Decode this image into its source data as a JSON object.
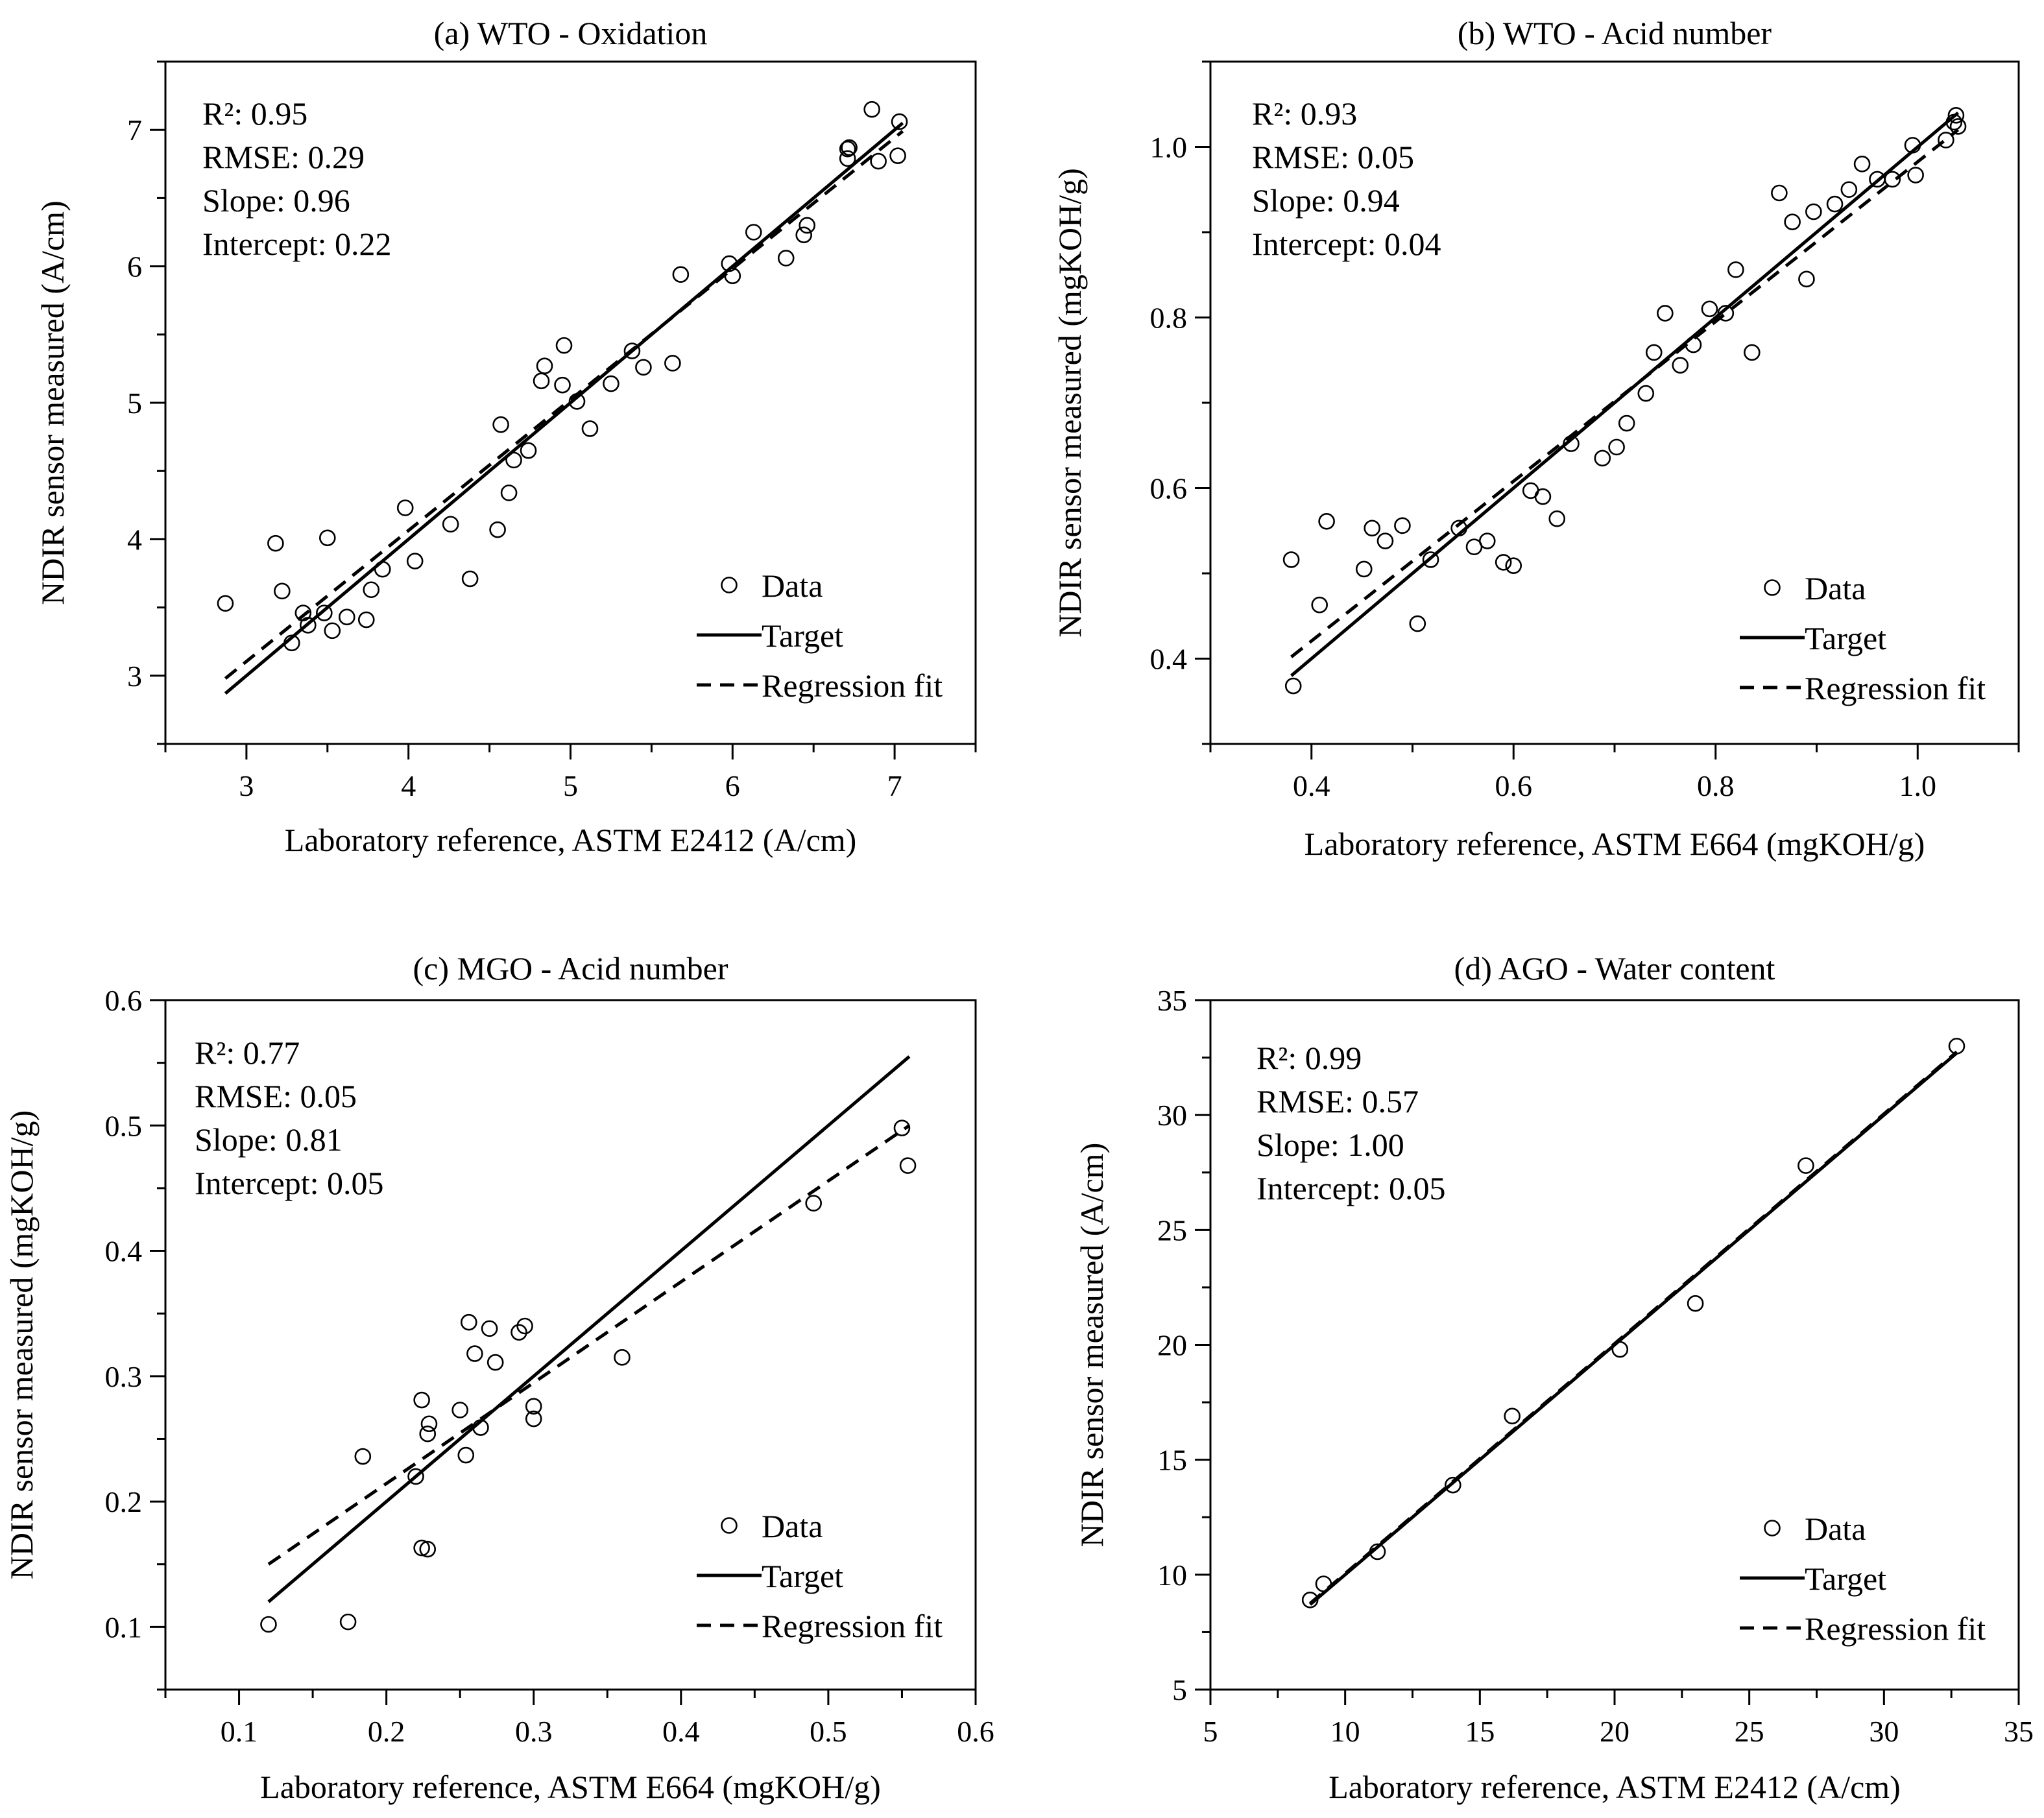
{
  "chart_data": [
    {
      "id": "a",
      "type": "scatter",
      "title": "(a)  WTO - Oxidation",
      "xlabel": "Laboratory reference, ASTM E2412 (A/cm)",
      "ylabel": "NDIR sensor measured (A/cm)",
      "xlim": [
        2.5,
        7.5
      ],
      "ylim": [
        2.5,
        7.5
      ],
      "xticks": [
        3,
        4,
        5,
        6,
        7
      ],
      "yticks": [
        3,
        4,
        5,
        6,
        7
      ],
      "xtick_labels": [
        "3",
        "4",
        "5",
        "6",
        "7"
      ],
      "ytick_labels": [
        "3",
        "4",
        "5",
        "6",
        "7"
      ],
      "stats": [
        "R²:  0.95",
        "RMSE: 0.29",
        "Slope: 0.96",
        "Intercept: 0.22"
      ],
      "legend": [
        "Data",
        "Target",
        "Regression fit"
      ],
      "target_line": [
        [
          2.87,
          2.87
        ],
        [
          7.05,
          7.05
        ]
      ],
      "fit_line": [
        [
          2.87,
          2.98
        ],
        [
          7.05,
          6.99
        ]
      ],
      "points": [
        [
          2.87,
          3.53
        ],
        [
          3.18,
          3.97
        ],
        [
          3.22,
          3.62
        ],
        [
          3.28,
          3.24
        ],
        [
          3.35,
          3.46
        ],
        [
          3.38,
          3.37
        ],
        [
          3.48,
          3.46
        ],
        [
          3.5,
          4.01
        ],
        [
          3.53,
          3.33
        ],
        [
          3.62,
          3.43
        ],
        [
          3.74,
          3.41
        ],
        [
          3.77,
          3.63
        ],
        [
          3.84,
          3.78
        ],
        [
          3.98,
          4.23
        ],
        [
          4.04,
          3.84
        ],
        [
          4.26,
          4.11
        ],
        [
          4.38,
          3.71
        ],
        [
          4.55,
          4.07
        ],
        [
          4.57,
          4.84
        ],
        [
          4.62,
          4.34
        ],
        [
          4.65,
          4.58
        ],
        [
          4.74,
          4.65
        ],
        [
          4.82,
          5.16
        ],
        [
          4.84,
          5.27
        ],
        [
          4.95,
          5.13
        ],
        [
          4.96,
          5.42
        ],
        [
          5.04,
          5.01
        ],
        [
          5.12,
          4.81
        ],
        [
          5.25,
          5.14
        ],
        [
          5.38,
          5.38
        ],
        [
          5.45,
          5.26
        ],
        [
          5.63,
          5.29
        ],
        [
          5.68,
          5.94
        ],
        [
          5.98,
          6.02
        ],
        [
          6.0,
          5.93
        ],
        [
          6.13,
          6.25
        ],
        [
          6.33,
          6.06
        ],
        [
          6.44,
          6.23
        ],
        [
          6.46,
          6.3
        ],
        [
          6.71,
          6.79
        ],
        [
          6.71,
          6.86
        ],
        [
          6.72,
          6.87
        ],
        [
          6.86,
          7.15
        ],
        [
          6.9,
          6.77
        ],
        [
          7.02,
          6.81
        ],
        [
          7.03,
          7.06
        ]
      ]
    },
    {
      "id": "b",
      "type": "scatter",
      "title": "(b)  WTO - Acid number",
      "xlabel": "Laboratory reference, ASTM E664 (mgKOH/g)",
      "ylabel": "NDIR sensor measured (mgKOH/g)",
      "xlim": [
        0.3,
        1.1
      ],
      "ylim": [
        0.3,
        1.1
      ],
      "xticks": [
        0.4,
        0.6,
        0.8,
        1.0
      ],
      "yticks": [
        0.4,
        0.6,
        0.8,
        1.0
      ],
      "xtick_labels": [
        "0.4",
        "0.6",
        "0.8",
        "1.0"
      ],
      "ytick_labels": [
        "0.4",
        "0.6",
        "0.8",
        "1.0"
      ],
      "stats": [
        "R²:  0.93",
        "RMSE: 0.05",
        "Slope: 0.94",
        "Intercept: 0.04"
      ],
      "legend": [
        "Data",
        "Target",
        "Regression fit"
      ],
      "target_line": [
        [
          0.38,
          0.38
        ],
        [
          1.04,
          1.04
        ]
      ],
      "fit_line": [
        [
          0.38,
          0.402
        ],
        [
          1.04,
          1.02
        ]
      ],
      "points": [
        [
          0.38,
          0.516
        ],
        [
          0.382,
          0.368
        ],
        [
          0.408,
          0.463
        ],
        [
          0.415,
          0.561
        ],
        [
          0.452,
          0.505
        ],
        [
          0.46,
          0.553
        ],
        [
          0.473,
          0.538
        ],
        [
          0.49,
          0.556
        ],
        [
          0.505,
          0.441
        ],
        [
          0.518,
          0.516
        ],
        [
          0.546,
          0.553
        ],
        [
          0.561,
          0.531
        ],
        [
          0.574,
          0.538
        ],
        [
          0.59,
          0.513
        ],
        [
          0.6,
          0.509
        ],
        [
          0.617,
          0.597
        ],
        [
          0.629,
          0.59
        ],
        [
          0.643,
          0.564
        ],
        [
          0.657,
          0.652
        ],
        [
          0.688,
          0.635
        ],
        [
          0.702,
          0.648
        ],
        [
          0.712,
          0.676
        ],
        [
          0.731,
          0.711
        ],
        [
          0.739,
          0.759
        ],
        [
          0.75,
          0.805
        ],
        [
          0.765,
          0.744
        ],
        [
          0.778,
          0.768
        ],
        [
          0.794,
          0.81
        ],
        [
          0.81,
          0.805
        ],
        [
          0.82,
          0.856
        ],
        [
          0.836,
          0.759
        ],
        [
          0.863,
          0.946
        ],
        [
          0.876,
          0.912
        ],
        [
          0.89,
          0.845
        ],
        [
          0.897,
          0.924
        ],
        [
          0.918,
          0.933
        ],
        [
          0.932,
          0.95
        ],
        [
          0.945,
          0.98
        ],
        [
          0.96,
          0.962
        ],
        [
          0.975,
          0.962
        ],
        [
          0.995,
          1.002
        ],
        [
          0.998,
          0.967
        ],
        [
          1.028,
          1.008
        ],
        [
          1.036,
          1.029
        ],
        [
          1.038,
          1.037
        ],
        [
          1.04,
          1.024
        ]
      ]
    },
    {
      "id": "c",
      "type": "scatter",
      "title": "(c)  MGO - Acid number",
      "xlabel": "Laboratory reference, ASTM E664  (mgKOH/g)",
      "ylabel": "NDIR sensor measured (mgKOH/g)",
      "xlim": [
        0.05,
        0.6
      ],
      "ylim": [
        0.05,
        0.6
      ],
      "xticks": [
        0.1,
        0.2,
        0.3,
        0.4,
        0.5,
        0.6
      ],
      "yticks": [
        0.1,
        0.2,
        0.3,
        0.4,
        0.5,
        0.6
      ],
      "xtick_labels": [
        "0.1",
        "0.2",
        "0.3",
        "0.4",
        "0.5",
        "0.6"
      ],
      "ytick_labels": [
        "0.1",
        "0.2",
        "0.3",
        "0.4",
        "0.5",
        "0.6"
      ],
      "stats": [
        "R²:  0.77",
        "RMSE: 0.05",
        "Slope: 0.81",
        "Intercept: 0.05"
      ],
      "legend": [
        "Data",
        "Target",
        "Regression fit"
      ],
      "target_line": [
        [
          0.12,
          0.12
        ],
        [
          0.555,
          0.555
        ]
      ],
      "fit_line": [
        [
          0.12,
          0.15
        ],
        [
          0.555,
          0.5
        ]
      ],
      "points": [
        [
          0.12,
          0.102
        ],
        [
          0.174,
          0.104
        ],
        [
          0.184,
          0.236
        ],
        [
          0.22,
          0.22
        ],
        [
          0.224,
          0.163
        ],
        [
          0.224,
          0.281
        ],
        [
          0.228,
          0.162
        ],
        [
          0.228,
          0.254
        ],
        [
          0.229,
          0.262
        ],
        [
          0.25,
          0.273
        ],
        [
          0.254,
          0.237
        ],
        [
          0.256,
          0.343
        ],
        [
          0.26,
          0.318
        ],
        [
          0.264,
          0.259
        ],
        [
          0.27,
          0.338
        ],
        [
          0.274,
          0.311
        ],
        [
          0.29,
          0.335
        ],
        [
          0.294,
          0.34
        ],
        [
          0.3,
          0.266
        ],
        [
          0.3,
          0.276
        ],
        [
          0.36,
          0.315
        ],
        [
          0.49,
          0.438
        ],
        [
          0.55,
          0.498
        ],
        [
          0.554,
          0.468
        ]
      ]
    },
    {
      "id": "d",
      "type": "scatter",
      "title": "(d)  AGO - Water content",
      "xlabel": "Laboratory reference, ASTM E2412 (A/cm)",
      "ylabel": "NDIR sensor measured (A/cm)",
      "xlim": [
        5,
        35
      ],
      "ylim": [
        5,
        35
      ],
      "xticks": [
        5,
        10,
        15,
        20,
        25,
        30,
        35
      ],
      "yticks": [
        5,
        10,
        15,
        20,
        25,
        30,
        35
      ],
      "xtick_labels": [
        "5",
        "10",
        "15",
        "20",
        "25",
        "30",
        "35"
      ],
      "ytick_labels": [
        "5",
        "10",
        "15",
        "20",
        "25",
        "30",
        "35"
      ],
      "stats": [
        "R²:  0.99",
        "RMSE: 0.57",
        "Slope: 1.00",
        "Intercept: 0.05"
      ],
      "legend": [
        "Data",
        "Target",
        "Regression fit"
      ],
      "target_line": [
        [
          8.7,
          8.7
        ],
        [
          32.7,
          32.7
        ]
      ],
      "fit_line": [
        [
          8.7,
          8.75
        ],
        [
          32.7,
          32.75
        ]
      ],
      "points": [
        [
          8.7,
          8.9
        ],
        [
          9.2,
          9.6
        ],
        [
          11.2,
          11.0
        ],
        [
          14.0,
          13.9
        ],
        [
          16.2,
          16.9
        ],
        [
          20.2,
          19.8
        ],
        [
          23.0,
          21.8
        ],
        [
          27.1,
          27.8
        ],
        [
          32.7,
          33.0
        ]
      ]
    }
  ]
}
